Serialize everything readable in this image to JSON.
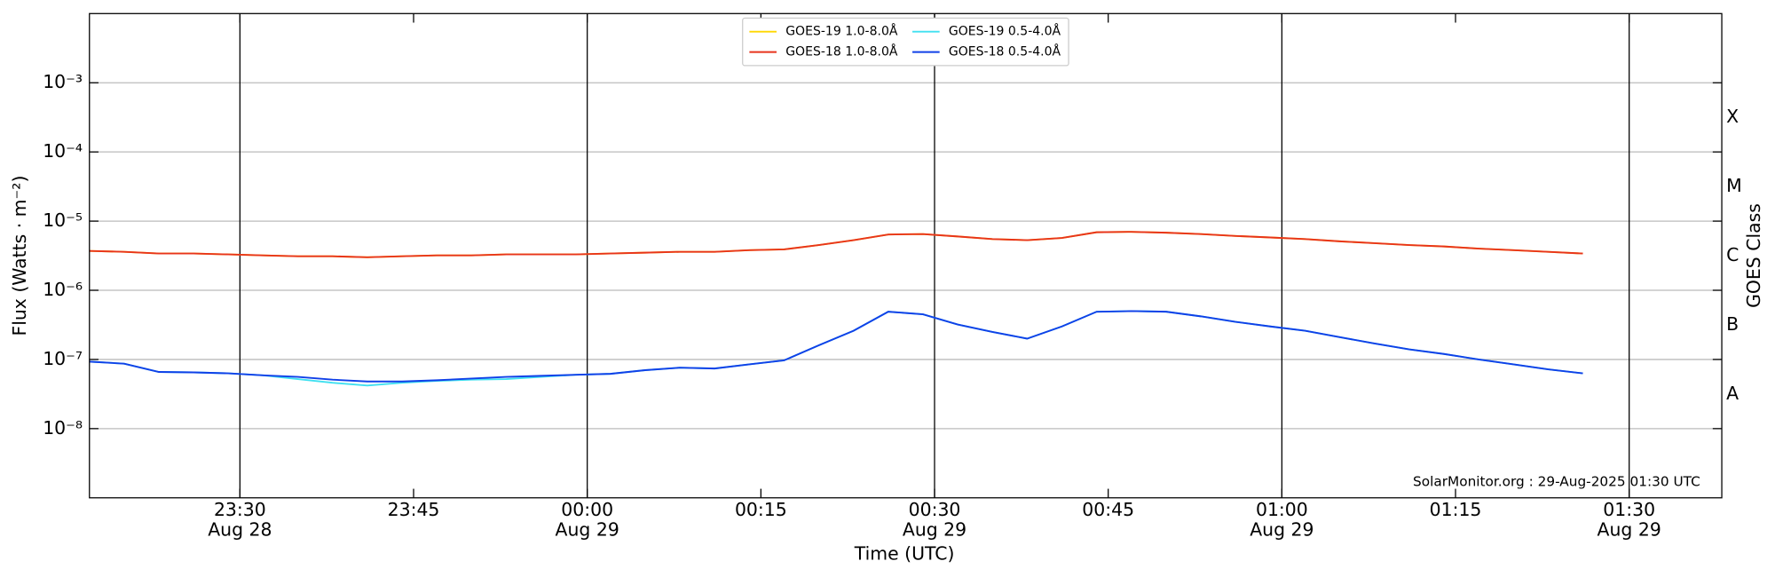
{
  "chart_data": {
    "type": "line",
    "xlabel": "Time (UTC)",
    "ylabel": "Flux (Watts · m⁻²)",
    "y2label": "GOES Class",
    "annotation": "SolarMonitor.org : 29-Aug-2025 01:30 UTC",
    "log_y": true,
    "grid": true,
    "legend": "upper center",
    "xlim": [
      "23:17",
      "01:38"
    ],
    "xticks": [
      "23:30",
      "23:45",
      "00:00",
      "00:15",
      "00:30",
      "00:45",
      "01:00",
      "01:15",
      "01:30"
    ],
    "xtick_dates": [
      "Aug 28",
      null,
      "Aug 29",
      null,
      "Aug 29",
      null,
      "Aug 29",
      null,
      "Aug 29"
    ],
    "ylim": [
      1e-09,
      0.01
    ],
    "yticks": [
      {
        "value": 0.001,
        "label": "10⁻³"
      },
      {
        "value": 0.0001,
        "label": "10⁻⁴"
      },
      {
        "value": 1e-05,
        "label": "10⁻⁵"
      },
      {
        "value": 1e-06,
        "label": "10⁻⁶"
      },
      {
        "value": 1e-07,
        "label": "10⁻⁷"
      },
      {
        "value": 1e-08,
        "label": "10⁻⁸"
      }
    ],
    "y2lim": [
      1e-09,
      0.01
    ],
    "y2ticks": [
      {
        "value": 0.0001,
        "label": "X"
      },
      {
        "value": 1e-05,
        "label": "M"
      },
      {
        "value": 1e-06,
        "label": "C"
      },
      {
        "value": 1e-07,
        "label": "B"
      },
      {
        "value": 1e-08,
        "label": "A"
      }
    ],
    "x": [
      "23:17",
      "23:20",
      "23:23",
      "23:26",
      "23:29",
      "23:32",
      "23:35",
      "23:38",
      "23:41",
      "23:44",
      "23:47",
      "23:50",
      "23:53",
      "23:56",
      "23:59",
      "00:02",
      "00:05",
      "00:08",
      "00:11",
      "00:14",
      "00:17",
      "00:20",
      "00:23",
      "00:26",
      "00:29",
      "00:32",
      "00:35",
      "00:38",
      "00:41",
      "00:44",
      "00:47",
      "00:50",
      "00:53",
      "00:56",
      "00:59",
      "01:02",
      "01:05",
      "01:08",
      "01:11",
      "01:14",
      "01:17",
      "01:20",
      "01:23",
      "01:26"
    ],
    "series": [
      {
        "name": "GOES-19 1.0-8.0Å",
        "color": "#ffd700",
        "values": [
          3.7e-06,
          3.6e-06,
          3.4e-06,
          3.4e-06,
          3.3e-06,
          3.2e-06,
          3.1e-06,
          3.1e-06,
          3e-06,
          3.1e-06,
          3.2e-06,
          3.2e-06,
          3.3e-06,
          3.3e-06,
          3.3e-06,
          3.4e-06,
          3.5e-06,
          3.6e-06,
          3.6e-06,
          3.8e-06,
          3.9e-06,
          4.5e-06,
          5.3e-06,
          6.4e-06,
          6.5e-06,
          6e-06,
          5.5e-06,
          5.3e-06,
          5.7e-06,
          6.9e-06,
          7e-06,
          6.8e-06,
          6.5e-06,
          6.1e-06,
          5.8e-06,
          5.5e-06,
          5.1e-06,
          4.8e-06,
          4.5e-06,
          4.3e-06,
          4e-06,
          3.8e-06,
          3.6e-06,
          3.4e-06
        ]
      },
      {
        "name": "GOES-18 1.0-8.0Å",
        "color": "#e8341c",
        "values": [
          3.7e-06,
          3.6e-06,
          3.4e-06,
          3.4e-06,
          3.3e-06,
          3.2e-06,
          3.1e-06,
          3.1e-06,
          3e-06,
          3.1e-06,
          3.2e-06,
          3.2e-06,
          3.3e-06,
          3.3e-06,
          3.3e-06,
          3.4e-06,
          3.5e-06,
          3.6e-06,
          3.6e-06,
          3.8e-06,
          3.9e-06,
          4.5e-06,
          5.3e-06,
          6.4e-06,
          6.5e-06,
          6e-06,
          5.5e-06,
          5.3e-06,
          5.7e-06,
          6.9e-06,
          7e-06,
          6.8e-06,
          6.5e-06,
          6.1e-06,
          5.8e-06,
          5.5e-06,
          5.1e-06,
          4.8e-06,
          4.5e-06,
          4.3e-06,
          4e-06,
          3.8e-06,
          3.6e-06,
          3.4e-06
        ]
      },
      {
        "name": "GOES-19 0.5-4.0Å",
        "color": "#40e0f0",
        "values": [
          9.3e-08,
          8.7e-08,
          6.6e-08,
          6.5e-08,
          6.3e-08,
          5.9e-08,
          5.2e-08,
          4.6e-08,
          4.2e-08,
          4.6e-08,
          4.9e-08,
          5.1e-08,
          5.2e-08,
          5.6e-08,
          6e-08,
          6.2e-08,
          7e-08,
          7.6e-08,
          7.4e-08,
          8.5e-08,
          9.7e-08,
          1.6e-07,
          2.6e-07,
          4.9e-07,
          4.5e-07,
          3.2e-07,
          2.5e-07,
          2e-07,
          3e-07,
          4.9e-07,
          5e-07,
          4.9e-07,
          4.2e-07,
          3.5e-07,
          3e-07,
          2.6e-07,
          2.1e-07,
          1.7e-07,
          1.4e-07,
          1.2e-07,
          1e-07,
          8.5e-08,
          7.2e-08,
          6.3e-08
        ]
      },
      {
        "name": "GOES-18 0.5-4.0Å",
        "color": "#1040e8",
        "values": [
          9.3e-08,
          8.7e-08,
          6.6e-08,
          6.5e-08,
          6.3e-08,
          5.9e-08,
          5.6e-08,
          5.1e-08,
          4.8e-08,
          4.8e-08,
          5e-08,
          5.3e-08,
          5.6e-08,
          5.8e-08,
          6e-08,
          6.2e-08,
          7e-08,
          7.6e-08,
          7.4e-08,
          8.5e-08,
          9.7e-08,
          1.6e-07,
          2.6e-07,
          4.9e-07,
          4.5e-07,
          3.2e-07,
          2.5e-07,
          2e-07,
          3e-07,
          4.9e-07,
          5e-07,
          4.9e-07,
          4.2e-07,
          3.5e-07,
          3e-07,
          2.6e-07,
          2.1e-07,
          1.7e-07,
          1.4e-07,
          1.2e-07,
          1e-07,
          8.5e-08,
          7.2e-08,
          6.3e-08
        ]
      }
    ]
  }
}
